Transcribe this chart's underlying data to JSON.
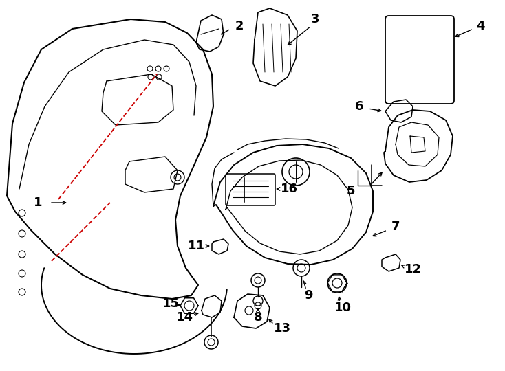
{
  "background_color": "#ffffff",
  "line_color": "#000000",
  "red_line_color": "#cc0000",
  "label_fontsize": 13,
  "labels": [
    "1",
    "2",
    "3",
    "4",
    "5",
    "6",
    "7",
    "8",
    "9",
    "10",
    "11",
    "12",
    "13",
    "14",
    "15",
    "16"
  ]
}
